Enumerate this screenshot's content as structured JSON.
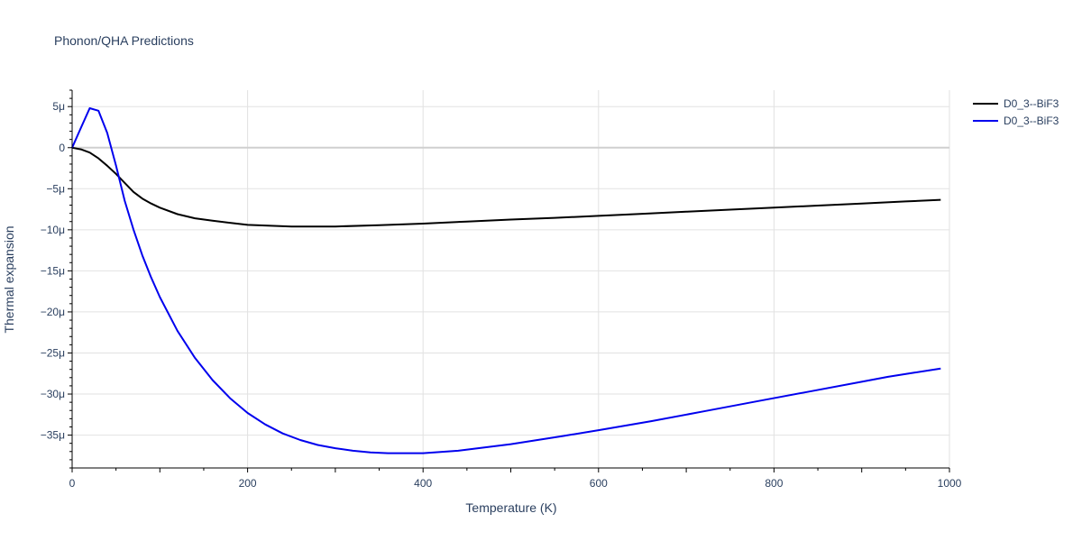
{
  "chart_data": {
    "type": "line",
    "title": "Phonon/QHA Predictions",
    "xlabel": "Temperature (K)",
    "ylabel": "Thermal expansion",
    "xlim": [
      0,
      1000
    ],
    "ylim": [
      -3.9e-05,
      7e-06
    ],
    "x_ticks": [
      0,
      200,
      400,
      600,
      800,
      1000
    ],
    "x_tick_labels": [
      "0",
      "200",
      "400",
      "600",
      "800",
      "1000"
    ],
    "y_ticks": [
      5e-06,
      0,
      -5e-06,
      -1e-05,
      -1.5e-05,
      -2e-05,
      -2.5e-05,
      -3e-05,
      -3.5e-05
    ],
    "y_tick_labels": [
      "5μ",
      "0",
      "−5μ",
      "−10μ",
      "−15μ",
      "−20μ",
      "−25μ",
      "−30μ",
      "−35μ"
    ],
    "grid": true,
    "legend_position": "top-right",
    "series": [
      {
        "name": "D0_3--BiF3",
        "color": "#000000",
        "x": [
          0,
          10,
          20,
          30,
          40,
          50,
          60,
          70,
          80,
          90,
          100,
          120,
          140,
          160,
          180,
          200,
          250,
          300,
          350,
          400,
          450,
          500,
          550,
          600,
          650,
          700,
          750,
          800,
          850,
          900,
          950,
          990
        ],
        "y": [
          0,
          -2e-07,
          -6e-07,
          -1.3e-06,
          -2.2e-06,
          -3.2e-06,
          -4.3e-06,
          -5.4e-06,
          -6.2e-06,
          -6.8e-06,
          -7.3e-06,
          -8.1e-06,
          -8.6e-06,
          -8.9e-06,
          -9.15e-06,
          -9.4e-06,
          -9.6e-06,
          -9.6e-06,
          -9.45e-06,
          -9.25e-06,
          -9e-06,
          -8.75e-06,
          -8.55e-06,
          -8.3e-06,
          -8.05e-06,
          -7.8e-06,
          -7.55e-06,
          -7.3e-06,
          -7.05e-06,
          -6.8e-06,
          -6.55e-06,
          -6.35e-06
        ]
      },
      {
        "name": "D0_3--BiF3",
        "color": "#0000ee",
        "x": [
          0,
          10,
          20,
          30,
          40,
          50,
          60,
          70,
          80,
          90,
          100,
          120,
          140,
          160,
          180,
          200,
          220,
          240,
          260,
          280,
          300,
          320,
          340,
          360,
          380,
          400,
          440,
          500,
          560,
          600,
          660,
          720,
          780,
          840,
          900,
          930,
          960,
          990
        ],
        "y": [
          0,
          2.4e-06,
          4.8e-06,
          4.5e-06,
          1.8e-06,
          -2.2e-06,
          -6.5e-06,
          -1e-05,
          -1.31e-05,
          -1.58e-05,
          -1.82e-05,
          -2.23e-05,
          -2.56e-05,
          -2.83e-05,
          -3.05e-05,
          -3.23e-05,
          -3.37e-05,
          -3.48e-05,
          -3.56e-05,
          -3.62e-05,
          -3.66e-05,
          -3.69e-05,
          -3.71e-05,
          -3.72e-05,
          -3.72e-05,
          -3.72e-05,
          -3.69e-05,
          -3.61e-05,
          -3.51e-05,
          -3.44e-05,
          -3.33e-05,
          -3.21e-05,
          -3.09e-05,
          -2.97e-05,
          -2.85e-05,
          -2.79e-05,
          -2.74e-05,
          -2.69e-05
        ]
      }
    ]
  }
}
